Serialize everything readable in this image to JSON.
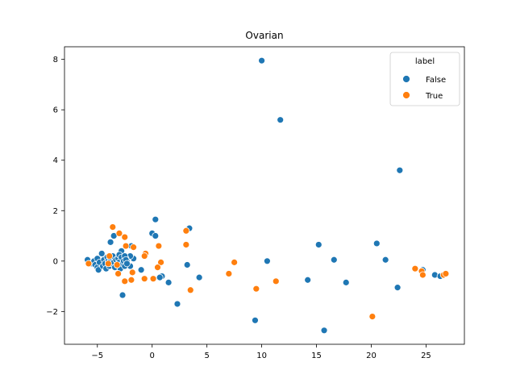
{
  "chart_data": {
    "type": "scatter",
    "title": "Ovarian",
    "xlabel": "",
    "ylabel": "",
    "xlim": [
      -8,
      28.5
    ],
    "ylim": [
      -3.3,
      8.5
    ],
    "xticks": [
      -5,
      0,
      5,
      10,
      15,
      20,
      25
    ],
    "yticks": [
      -2,
      0,
      2,
      4,
      6,
      8
    ],
    "grid": false,
    "legend": {
      "title": "label",
      "placement": "top-right"
    },
    "series": [
      {
        "name": "False",
        "color": "#1f77b4",
        "points": [
          [
            10.0,
            7.95
          ],
          [
            11.7,
            5.6
          ],
          [
            22.6,
            3.6
          ],
          [
            0.3,
            1.65
          ],
          [
            0.0,
            1.1
          ],
          [
            0.3,
            1.0
          ],
          [
            3.4,
            1.3
          ],
          [
            -3.5,
            1.0
          ],
          [
            -3.8,
            0.75
          ],
          [
            -1.9,
            0.6
          ],
          [
            -1.7,
            0.1
          ],
          [
            -2.0,
            0.2
          ],
          [
            -2.8,
            0.4
          ],
          [
            -2.4,
            0.1
          ],
          [
            -2.3,
            0.0
          ],
          [
            -2.0,
            -0.2
          ],
          [
            -1.0,
            -0.35
          ],
          [
            0.9,
            -0.6
          ],
          [
            0.7,
            -0.65
          ],
          [
            1.5,
            -0.85
          ],
          [
            3.2,
            -0.15
          ],
          [
            4.3,
            -0.65
          ],
          [
            2.3,
            -1.7
          ],
          [
            -2.7,
            -1.35
          ],
          [
            -5.9,
            0.05
          ],
          [
            -5.6,
            -0.1
          ],
          [
            -5.3,
            0.0
          ],
          [
            -5.2,
            -0.15
          ],
          [
            -5.0,
            0.1
          ],
          [
            -5.0,
            -0.25
          ],
          [
            -4.9,
            -0.35
          ],
          [
            -4.8,
            -0.05
          ],
          [
            -4.6,
            0.3
          ],
          [
            -4.5,
            -0.2
          ],
          [
            -4.4,
            0.05
          ],
          [
            -4.3,
            -0.1
          ],
          [
            -4.2,
            -0.3
          ],
          [
            -4.1,
            0.15
          ],
          [
            -4.0,
            0.0
          ],
          [
            -3.9,
            -0.2
          ],
          [
            -3.8,
            0.1
          ],
          [
            -3.7,
            -0.1
          ],
          [
            -3.6,
            0.2
          ],
          [
            -3.5,
            -0.05
          ],
          [
            -3.4,
            -0.25
          ],
          [
            -3.3,
            0.05
          ],
          [
            -3.2,
            -0.15
          ],
          [
            -3.1,
            0.1
          ],
          [
            -3.0,
            0.25
          ],
          [
            -3.0,
            -0.05
          ],
          [
            -2.9,
            -0.3
          ],
          [
            -2.8,
            0.15
          ],
          [
            -2.7,
            -0.1
          ],
          [
            -2.6,
            0.0
          ],
          [
            -2.5,
            -0.2
          ],
          [
            -2.5,
            0.2
          ],
          [
            -2.4,
            0.05
          ],
          [
            -2.3,
            -0.1
          ],
          [
            9.4,
            -2.35
          ],
          [
            10.5,
            0.0
          ],
          [
            14.2,
            -0.75
          ],
          [
            15.2,
            0.65
          ],
          [
            15.7,
            -2.75
          ],
          [
            16.6,
            0.05
          ],
          [
            17.7,
            -0.85
          ],
          [
            20.5,
            0.7
          ],
          [
            21.3,
            0.05
          ],
          [
            22.4,
            -1.05
          ],
          [
            24.7,
            -0.35
          ],
          [
            25.8,
            -0.55
          ],
          [
            26.3,
            -0.6
          ]
        ]
      },
      {
        "name": "True",
        "color": "#ff7f0e",
        "points": [
          [
            -3.6,
            1.35
          ],
          [
            -3.0,
            1.1
          ],
          [
            -2.5,
            0.95
          ],
          [
            -1.7,
            0.55
          ],
          [
            -2.4,
            0.6
          ],
          [
            -0.6,
            0.3
          ],
          [
            -0.7,
            0.2
          ],
          [
            0.6,
            0.6
          ],
          [
            3.1,
            1.2
          ],
          [
            3.1,
            0.65
          ],
          [
            0.8,
            -0.05
          ],
          [
            0.5,
            -0.25
          ],
          [
            -3.9,
            0.2
          ],
          [
            -4.0,
            -0.1
          ],
          [
            -3.2,
            -0.15
          ],
          [
            -3.1,
            -0.5
          ],
          [
            -2.5,
            -0.8
          ],
          [
            -1.9,
            -0.75
          ],
          [
            -1.8,
            -0.45
          ],
          [
            -0.7,
            -0.7
          ],
          [
            0.1,
            -0.7
          ],
          [
            3.5,
            -1.15
          ],
          [
            7.0,
            -0.5
          ],
          [
            7.5,
            -0.05
          ],
          [
            9.5,
            -1.1
          ],
          [
            11.3,
            -0.8
          ],
          [
            20.1,
            -2.2
          ],
          [
            -5.8,
            -0.1
          ],
          [
            24.0,
            -0.3
          ],
          [
            24.6,
            -0.4
          ],
          [
            24.7,
            -0.55
          ],
          [
            26.6,
            -0.55
          ],
          [
            26.8,
            -0.5
          ]
        ]
      }
    ]
  }
}
